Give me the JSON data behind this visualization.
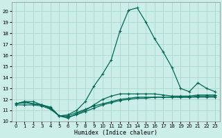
{
  "xlabel": "Humidex (Indice chaleur)",
  "background_color": "#cceee8",
  "grid_color": "#aad8d0",
  "line_color": "#006655",
  "xlim": [
    -0.5,
    23.5
  ],
  "ylim": [
    10.0,
    20.8
  ],
  "yticks": [
    10,
    11,
    12,
    13,
    14,
    15,
    16,
    17,
    18,
    19,
    20
  ],
  "xticks": [
    0,
    1,
    2,
    3,
    4,
    5,
    6,
    7,
    8,
    9,
    10,
    11,
    12,
    13,
    14,
    15,
    16,
    17,
    18,
    19,
    20,
    21,
    22,
    23
  ],
  "series": [
    [
      11.6,
      11.8,
      11.6,
      11.5,
      11.3,
      10.5,
      10.6,
      11.0,
      11.8,
      13.2,
      14.3,
      15.6,
      18.2,
      20.1,
      20.3,
      19.0,
      17.5,
      16.3,
      14.9,
      13.0,
      12.7,
      13.5,
      13.0,
      12.7
    ],
    [
      11.6,
      11.8,
      11.8,
      11.5,
      11.2,
      10.5,
      10.3,
      10.7,
      11.0,
      11.5,
      12.0,
      12.3,
      12.5,
      12.5,
      12.5,
      12.5,
      12.5,
      12.4,
      12.3,
      12.3,
      12.3,
      12.4,
      12.4,
      12.4
    ],
    [
      11.5,
      11.5,
      11.5,
      11.4,
      11.1,
      10.5,
      10.4,
      10.6,
      10.9,
      11.2,
      11.5,
      11.7,
      11.9,
      12.0,
      12.1,
      12.1,
      12.2,
      12.2,
      12.2,
      12.2,
      12.2,
      12.2,
      12.2,
      12.2
    ],
    [
      11.6,
      11.7,
      11.6,
      11.5,
      11.2,
      10.5,
      10.5,
      10.8,
      11.1,
      11.4,
      11.6,
      11.8,
      12.0,
      12.1,
      12.2,
      12.2,
      12.2,
      12.2,
      12.2,
      12.2,
      12.2,
      12.3,
      12.3,
      12.3
    ]
  ]
}
